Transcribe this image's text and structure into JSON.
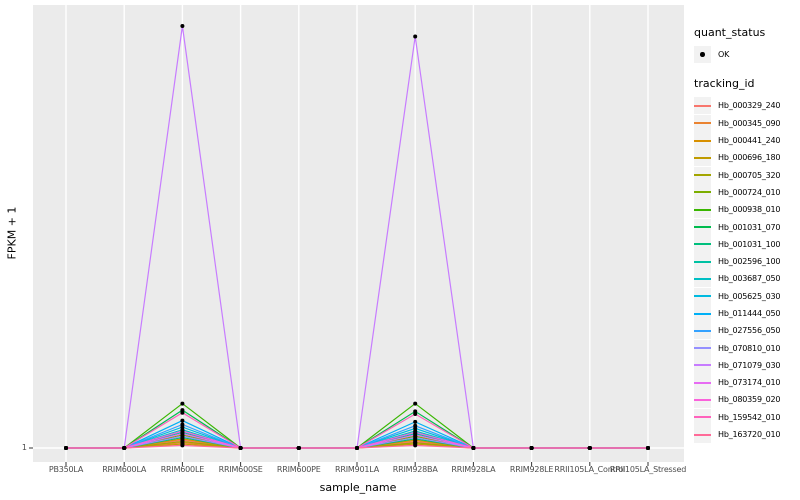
{
  "figure": {
    "background": "#FFFFFF",
    "panel_bg": "#EBEBEB",
    "grid_color": "#FFFFFF",
    "axis_text_color": "#4D4D4D",
    "tick_color": "#333333",
    "point_color": "#000000"
  },
  "chart_data": {
    "type": "line",
    "title": "",
    "xlabel": "sample_name",
    "ylabel": "FPKM + 1",
    "categories": [
      "PB350LA",
      "RRIM600LA",
      "RRIM600LE",
      "RRIM600SE",
      "RRIM600PE",
      "RRIM901LA",
      "RRIM928BA",
      "RRIM928LA",
      "RRIM928LE",
      "RRII105LA_Control",
      "RRII105LA_Stressed"
    ],
    "y_axis": {
      "ticks": [
        "1"
      ],
      "scale_note": "only the FPKM+1 = 1 break is visible; spike values estimated from pixel heights"
    },
    "legend_position": "right",
    "grid": "vertical category gridlines + baseline gridline, white on gray panel",
    "points": "black point at every sample for every series (quant_status OK)",
    "series": [
      {
        "name": "Hb_000329_240",
        "color": "#F8766D",
        "values": [
          1,
          1,
          1.6,
          1,
          1,
          1,
          1.5,
          1,
          1,
          1,
          1
        ]
      },
      {
        "name": "Hb_000345_090",
        "color": "#EA8331",
        "values": [
          1,
          1,
          1.4,
          1,
          1,
          1,
          1.4,
          1,
          1,
          1,
          1
        ]
      },
      {
        "name": "Hb_000441_240",
        "color": "#D89000",
        "values": [
          1,
          1,
          1.7,
          1,
          1,
          1,
          1.6,
          1,
          1,
          1,
          1
        ]
      },
      {
        "name": "Hb_000696_180",
        "color": "#C09B00",
        "values": [
          1,
          1,
          1.3,
          1,
          1,
          1,
          1.3,
          1,
          1,
          1,
          1
        ]
      },
      {
        "name": "Hb_000705_320",
        "color": "#A3A500",
        "values": [
          1,
          1,
          1.5,
          1,
          1,
          1,
          1.4,
          1,
          1,
          1,
          1
        ]
      },
      {
        "name": "Hb_000724_010",
        "color": "#7CAE00",
        "values": [
          1,
          1,
          2.0,
          1,
          1,
          1,
          1.9,
          1,
          1,
          1,
          1
        ]
      },
      {
        "name": "Hb_000938_010",
        "color": "#39B600",
        "values": [
          1,
          1,
          4.4,
          1,
          1,
          1,
          4.4,
          1,
          1,
          1,
          1
        ]
      },
      {
        "name": "Hb_001031_070",
        "color": "#00BB4E",
        "values": [
          1,
          1,
          3.9,
          1,
          1,
          1,
          3.8,
          1,
          1,
          1,
          1
        ]
      },
      {
        "name": "Hb_001031_100",
        "color": "#00BF7D",
        "values": [
          1,
          1,
          1.8,
          1,
          1,
          1,
          1.7,
          1,
          1,
          1,
          1
        ]
      },
      {
        "name": "Hb_002596_100",
        "color": "#00C1A3",
        "values": [
          1,
          1,
          2.2,
          1,
          1,
          1,
          2.1,
          1,
          1,
          1,
          1
        ]
      },
      {
        "name": "Hb_003687_050",
        "color": "#00BFC4",
        "values": [
          1,
          1,
          2.4,
          1,
          1,
          1,
          2.3,
          1,
          1,
          1,
          1
        ]
      },
      {
        "name": "Hb_005625_030",
        "color": "#00BAE0",
        "values": [
          1,
          1,
          2.6,
          1,
          1,
          1,
          2.5,
          1,
          1,
          1,
          1
        ]
      },
      {
        "name": "Hb_011444_050",
        "color": "#00B0F6",
        "values": [
          1,
          1,
          3.1,
          1,
          1,
          1,
          3.0,
          1,
          1,
          1,
          1
        ]
      },
      {
        "name": "Hb_027556_050",
        "color": "#35A2FF",
        "values": [
          1,
          1,
          2.8,
          1,
          1,
          1,
          2.7,
          1,
          1,
          1,
          1
        ]
      },
      {
        "name": "Hb_070810_010",
        "color": "#9590FF",
        "values": [
          1,
          1,
          1.9,
          1,
          1,
          1,
          1.8,
          1,
          1,
          1,
          1
        ]
      },
      {
        "name": "Hb_071079_030",
        "color": "#C77CFF",
        "values": [
          1,
          1,
          33.3,
          1,
          1,
          1,
          32.5,
          1,
          1,
          1,
          1
        ]
      },
      {
        "name": "Hb_073174_010",
        "color": "#E76BF3",
        "values": [
          1,
          1,
          2.1,
          1,
          1,
          1,
          2.0,
          1,
          1,
          1,
          1
        ]
      },
      {
        "name": "Hb_080359_020",
        "color": "#FA62DB",
        "values": [
          1,
          1,
          2.3,
          1,
          1,
          1,
          2.2,
          1,
          1,
          1,
          1
        ]
      },
      {
        "name": "Hb_159542_010",
        "color": "#FF62BC",
        "values": [
          1,
          1,
          3.7,
          1,
          1,
          1,
          3.6,
          1,
          1,
          1,
          1
        ]
      },
      {
        "name": "Hb_163720_010",
        "color": "#FF6A98",
        "values": [
          1,
          1,
          1.2,
          1,
          1,
          1,
          1.2,
          1,
          1,
          1,
          1
        ]
      }
    ]
  },
  "legend": {
    "quant_status": {
      "title": "quant_status",
      "items": [
        {
          "label": "OK",
          "symbol": "point"
        }
      ]
    },
    "tracking_id": {
      "title": "tracking_id"
    }
  }
}
